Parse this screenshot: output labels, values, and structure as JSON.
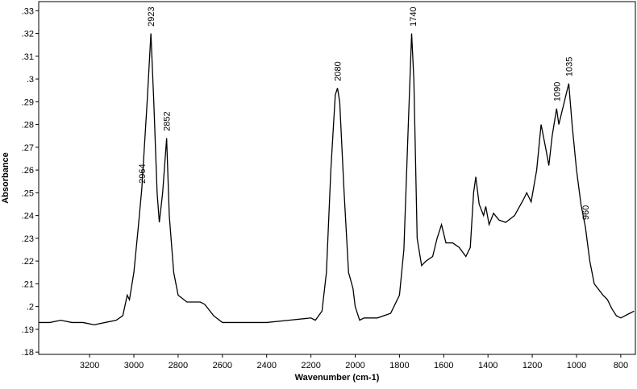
{
  "chart_data": {
    "type": "line",
    "xlabel": "Wavenumber (cm-1)",
    "ylabel": "Absorbance",
    "xlim": [
      3430,
      734
    ],
    "ylim": [
      0.179,
      0.334
    ],
    "xticks": [
      3200,
      3000,
      2800,
      2600,
      2400,
      2200,
      2000,
      1800,
      1600,
      1400,
      1200,
      1000,
      800
    ],
    "yticks": [
      {
        "value": 0.18,
        "label": ".18"
      },
      {
        "value": 0.19,
        "label": ".19"
      },
      {
        "value": 0.2,
        "label": ".2"
      },
      {
        "value": 0.21,
        "label": ".21"
      },
      {
        "value": 0.22,
        "label": ".22"
      },
      {
        "value": 0.23,
        "label": ".23"
      },
      {
        "value": 0.24,
        "label": ".24"
      },
      {
        "value": 0.25,
        "label": ".25"
      },
      {
        "value": 0.26,
        "label": ".26"
      },
      {
        "value": 0.27,
        "label": ".27"
      },
      {
        "value": 0.28,
        "label": ".28"
      },
      {
        "value": 0.29,
        "label": ".29"
      },
      {
        "value": 0.3,
        "label": ".3"
      },
      {
        "value": 0.31,
        "label": ".31"
      },
      {
        "value": 0.32,
        "label": ".32"
      },
      {
        "value": 0.33,
        "label": ".33"
      }
    ],
    "grid": false,
    "color": "#000000",
    "x": [
      3430,
      3380,
      3330,
      3280,
      3230,
      3180,
      3130,
      3080,
      3050,
      3030,
      3020,
      3000,
      2980,
      2964,
      2940,
      2923,
      2910,
      2895,
      2885,
      2870,
      2852,
      2840,
      2820,
      2800,
      2760,
      2700,
      2680,
      2640,
      2600,
      2500,
      2400,
      2300,
      2200,
      2180,
      2150,
      2130,
      2110,
      2090,
      2080,
      2070,
      2050,
      2030,
      2010,
      2000,
      1980,
      1960,
      1900,
      1840,
      1800,
      1780,
      1760,
      1745,
      1735,
      1720,
      1700,
      1680,
      1650,
      1630,
      1610,
      1590,
      1560,
      1530,
      1500,
      1480,
      1465,
      1455,
      1440,
      1420,
      1410,
      1395,
      1375,
      1350,
      1320,
      1280,
      1240,
      1225,
      1205,
      1180,
      1160,
      1140,
      1125,
      1110,
      1090,
      1080,
      1060,
      1035,
      1020,
      1000,
      980,
      960,
      940,
      920,
      880,
      860,
      840,
      820,
      800,
      780,
      760,
      740
    ],
    "values": [
      0.193,
      0.193,
      0.194,
      0.193,
      0.193,
      0.192,
      0.193,
      0.194,
      0.196,
      0.205,
      0.203,
      0.215,
      0.235,
      0.252,
      0.29,
      0.32,
      0.29,
      0.25,
      0.237,
      0.25,
      0.274,
      0.24,
      0.215,
      0.205,
      0.202,
      0.202,
      0.201,
      0.196,
      0.193,
      0.193,
      0.193,
      0.194,
      0.195,
      0.194,
      0.198,
      0.215,
      0.26,
      0.293,
      0.296,
      0.29,
      0.25,
      0.215,
      0.208,
      0.2,
      0.194,
      0.195,
      0.195,
      0.197,
      0.205,
      0.225,
      0.28,
      0.32,
      0.3,
      0.23,
      0.218,
      0.22,
      0.222,
      0.23,
      0.236,
      0.228,
      0.228,
      0.226,
      0.222,
      0.226,
      0.25,
      0.257,
      0.245,
      0.24,
      0.244,
      0.236,
      0.241,
      0.238,
      0.237,
      0.24,
      0.247,
      0.25,
      0.246,
      0.26,
      0.28,
      0.27,
      0.262,
      0.275,
      0.287,
      0.28,
      0.288,
      0.298,
      0.28,
      0.26,
      0.245,
      0.235,
      0.22,
      0.21,
      0.205,
      0.203,
      0.199,
      0.196,
      0.195,
      0.196,
      0.197,
      0.198
    ],
    "annotations": [
      {
        "text": "2923",
        "x": 2923,
        "y": 0.322
      },
      {
        "text": "2852",
        "x": 2852,
        "y": 0.276
      },
      {
        "text": "2964",
        "x": 2964,
        "y": 0.253
      },
      {
        "text": "2080",
        "x": 2080,
        "y": 0.298
      },
      {
        "text": "1740",
        "x": 1740,
        "y": 0.322
      },
      {
        "text": "1090",
        "x": 1090,
        "y": 0.289
      },
      {
        "text": "1035",
        "x": 1035,
        "y": 0.3
      },
      {
        "text": "960",
        "x": 960,
        "y": 0.237
      }
    ]
  }
}
